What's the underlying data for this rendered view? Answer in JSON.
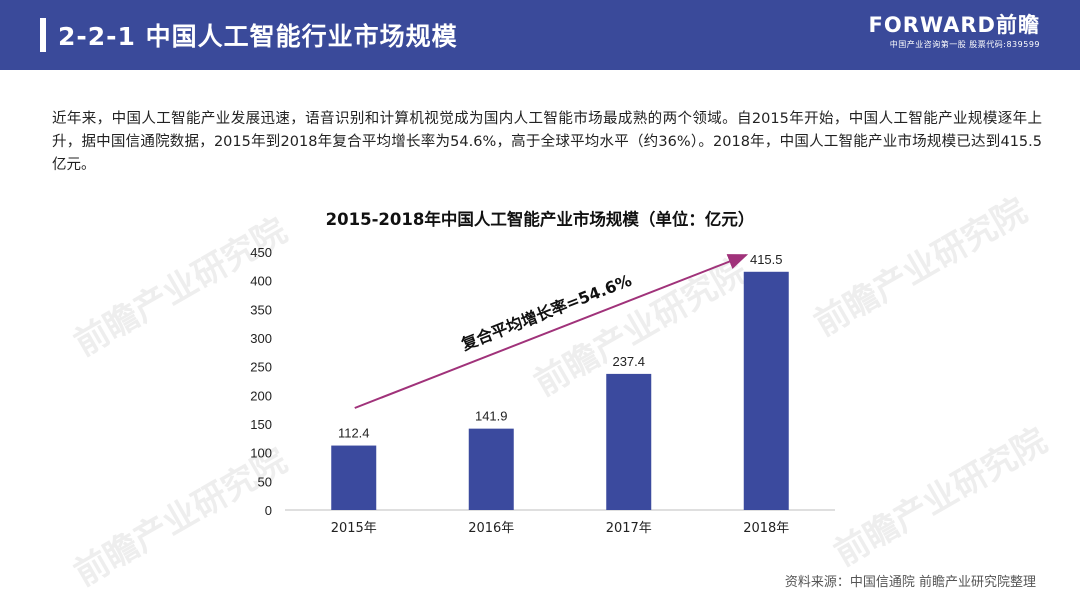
{
  "header": {
    "title": "2-2-1  中国人工智能行业市场规模",
    "brand_name": "FORWARD前瞻",
    "brand_sub": "中国产业咨询第一股 股票代码:839599"
  },
  "intro_text": "近年来，中国人工智能产业发展迅速，语音识别和计算机视觉成为国内人工智能市场最成熟的两个领域。自2015年开始，中国人工智能产业规模逐年上升，据中国信通院数据，2015年到2018年复合平均增长率为54.6%，高于全球平均水平（约36%）。2018年，中国人工智能产业市场规模已达到415.5亿元。",
  "watermark_text": "前瞻产业研究院",
  "chart_data": {
    "type": "bar",
    "title": "2015-2018年中国人工智能产业市场规模（单位：亿元）",
    "categories": [
      "2015年",
      "2016年",
      "2017年",
      "2018年"
    ],
    "values": [
      112.4,
      141.9,
      237.4,
      415.5
    ],
    "value_labels": [
      "112.4",
      "141.9",
      "237.4",
      "415.5"
    ],
    "ylim": [
      0,
      450
    ],
    "yticks": [
      0,
      50,
      100,
      150,
      200,
      250,
      300,
      350,
      400,
      450
    ],
    "grid": false,
    "annotation": "复合平均增长率=54.6%",
    "bar_color": "#3b4a9e",
    "arrow_color": "#a0327a"
  },
  "source_text": "资料来源：中国信通院 前瞻产业研究院整理"
}
